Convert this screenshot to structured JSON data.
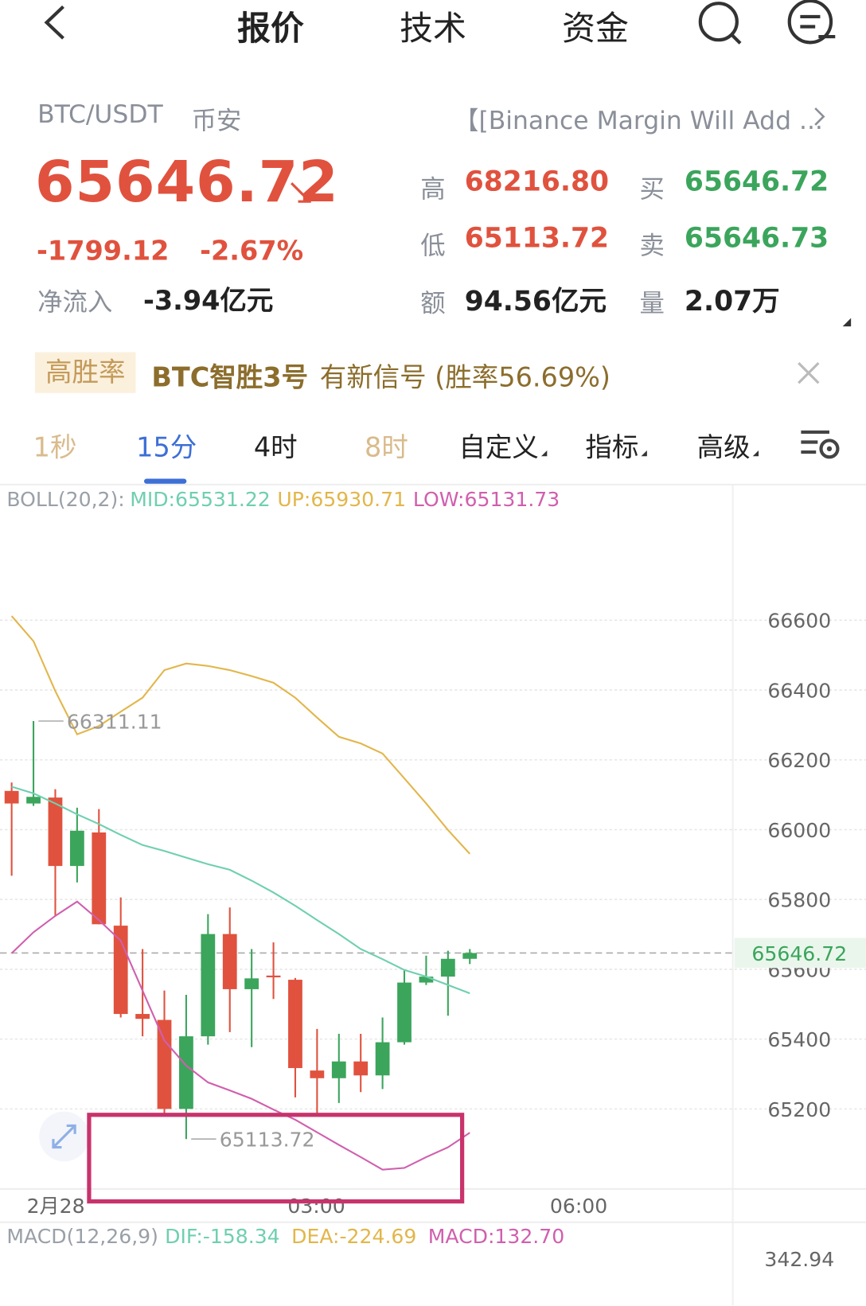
{
  "header": {
    "tabs": [
      "报价",
      "技术",
      "资金"
    ]
  },
  "symbol": {
    "pair": "BTC/USDT",
    "exchange": "币安",
    "news": "【[Binance Margin Will Add ..."
  },
  "quote": {
    "price": "65646.72",
    "change": "-1799.12",
    "change_pct": "-2.67%",
    "net_inflow_label": "净流入",
    "net_inflow": "-3.94亿元",
    "stats": [
      {
        "label": "高",
        "value": "68216.80"
      },
      {
        "label": "低",
        "value": "65113.72"
      },
      {
        "label": "额",
        "value": "94.56亿元"
      },
      {
        "label": "买",
        "value": "65646.72"
      },
      {
        "label": "卖",
        "value": "65646.73"
      },
      {
        "label": "量",
        "value": "2.07万"
      }
    ]
  },
  "banner": {
    "tag": "高胜率",
    "name": "BTC智胜3号",
    "text": "有新信号 (胜率56.69%)"
  },
  "periods": [
    "1秒",
    "15分",
    "4时",
    "8时",
    "自定义",
    "指标",
    "高级"
  ],
  "chart": {
    "type": "candlestick",
    "up_color": "#3ba55c",
    "down_color": "#e0523e",
    "boll_legend": {
      "name": "BOLL(20,2):",
      "mid": "MID:65531.22",
      "up": "UP:65930.71",
      "low": "LOW:65131.73"
    },
    "candles": [
      {
        "open": 66111,
        "high": 66135,
        "low": 65868,
        "close": 66075
      },
      {
        "open": 66075,
        "high": 66311.11,
        "low": 66068,
        "close": 66094
      },
      {
        "open": 66092,
        "high": 66116,
        "low": 65753,
        "close": 65896
      },
      {
        "open": 65896,
        "high": 66063,
        "low": 65849,
        "close": 65997
      },
      {
        "open": 65992,
        "high": 66059,
        "low": 65729,
        "close": 65729
      },
      {
        "open": 65725,
        "high": 65806,
        "low": 65462,
        "close": 65472
      },
      {
        "open": 65472,
        "high": 65658,
        "low": 65408,
        "close": 65458
      },
      {
        "open": 65455,
        "high": 65539,
        "low": 65181,
        "close": 65200
      },
      {
        "open": 65200,
        "high": 65527,
        "low": 65113.72,
        "close": 65408
      },
      {
        "open": 65408,
        "high": 65758,
        "low": 65384,
        "close": 65701
      },
      {
        "open": 65701,
        "high": 65777,
        "low": 65420,
        "close": 65543
      },
      {
        "open": 65543,
        "high": 65658,
        "low": 65377,
        "close": 65574
      },
      {
        "open": 65582,
        "high": 65677,
        "low": 65515,
        "close": 65577
      },
      {
        "open": 65570,
        "high": 65575,
        "low": 65233,
        "close": 65317
      },
      {
        "open": 65310,
        "high": 65429,
        "low": 65186,
        "close": 65288
      },
      {
        "open": 65288,
        "high": 65415,
        "low": 65217,
        "close": 65336
      },
      {
        "open": 65336,
        "high": 65415,
        "low": 65248,
        "close": 65296
      },
      {
        "open": 65296,
        "high": 65462,
        "low": 65257,
        "close": 65391
      },
      {
        "open": 65391,
        "high": 65598,
        "low": 65384,
        "close": 65562
      },
      {
        "open": 65562,
        "high": 65639,
        "low": 65555,
        "close": 65579
      },
      {
        "open": 65579,
        "high": 65653,
        "low": 65467,
        "close": 65630
      },
      {
        "open": 65630,
        "high": 65658,
        "low": 65615,
        "close": 65646.72
      }
    ],
    "boll": {
      "up": [
        66612,
        66540,
        66397,
        66273,
        66297,
        66338,
        66378,
        66457,
        66476,
        66469,
        66457,
        66440,
        66421,
        66378,
        66321,
        66266,
        66247,
        66218,
        66147,
        66075,
        65999,
        65930.71
      ],
      "mid": [
        66123,
        66104,
        66075,
        66044,
        66016,
        65985,
        65956,
        65939,
        65920,
        65901,
        65885,
        65854,
        65820,
        65782,
        65741,
        65701,
        65658,
        65629,
        65598,
        65579,
        65555,
        65531.22
      ],
      "low": [
        65646,
        65706,
        65753,
        65794,
        65741,
        65682,
        65539,
        65396,
        65324,
        65276,
        65253,
        65229,
        65198,
        65169,
        65133,
        65097,
        65062,
        65026,
        65031,
        65062,
        65090,
        65131.73
      ]
    },
    "boll_colors": {
      "up": "#e2b64a",
      "mid": "#6fcfb0",
      "low": "#d05fae"
    },
    "ylim": [
      64966,
      66898
    ],
    "yticks": [
      66600,
      66400,
      66200,
      66000,
      65800,
      65600,
      65400,
      65200
    ],
    "x_labels": [
      "2月28",
      "03:00",
      "06:00"
    ],
    "macd_legend": {
      "name": "MACD(12,26,9)",
      "dif": "DIF:-158.34",
      "dea": "DEA:-224.69",
      "macd": "MACD:132.70"
    },
    "macd_axis": "342.94"
  }
}
